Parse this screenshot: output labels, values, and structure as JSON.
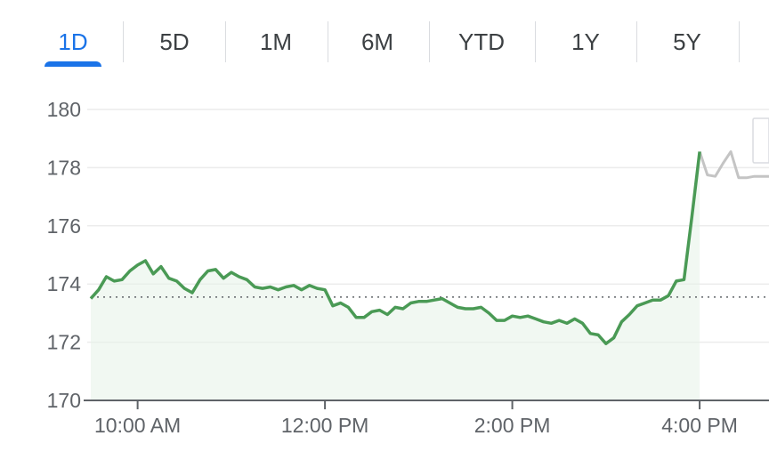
{
  "range_tabs": [
    {
      "label": "1D",
      "active": true
    },
    {
      "label": "5D",
      "active": false
    },
    {
      "label": "1M",
      "active": false
    },
    {
      "label": "6M",
      "active": false
    },
    {
      "label": "YTD",
      "active": false
    },
    {
      "label": "1Y",
      "active": false
    },
    {
      "label": "5Y",
      "active": false
    }
  ],
  "colors": {
    "accent": "#1a73e8",
    "line_up": "#4a9a55",
    "after_hours": "#c4c4c4",
    "fill": "#e8f3ea",
    "grid": "#ececec",
    "dotted": "#5f6368"
  },
  "chart_data": {
    "type": "line",
    "title": "",
    "xlabel": "",
    "ylabel": "",
    "ylim": [
      170,
      180
    ],
    "y_ticks": [
      170,
      172,
      174,
      176,
      178,
      180
    ],
    "x_ticks": [
      "10:00 AM",
      "12:00 PM",
      "2:00 PM",
      "4:00 PM"
    ],
    "x_tick_minutes": [
      600,
      720,
      840,
      960
    ],
    "x_range_minutes": [
      570,
      1005
    ],
    "previous_close": 173.55,
    "grid": true,
    "series": [
      {
        "kind": "regular",
        "x": [
          570,
          575,
          580,
          585,
          590,
          595,
          600,
          605,
          610,
          615,
          620,
          625,
          630,
          635,
          640,
          645,
          650,
          655,
          660,
          665,
          670,
          675,
          680,
          685,
          690,
          695,
          700,
          705,
          710,
          715,
          720,
          725,
          730,
          735,
          740,
          745,
          750,
          755,
          760,
          765,
          770,
          775,
          780,
          785,
          790,
          795,
          800,
          805,
          810,
          815,
          820,
          825,
          830,
          835,
          840,
          845,
          850,
          855,
          860,
          865,
          870,
          875,
          880,
          885,
          890,
          895,
          900,
          905,
          910,
          915,
          920,
          925,
          930,
          935,
          940,
          945,
          950,
          955,
          960
        ],
        "y": [
          173.5,
          173.8,
          174.25,
          174.1,
          174.15,
          174.45,
          174.65,
          174.8,
          174.35,
          174.6,
          174.2,
          174.1,
          173.85,
          173.7,
          174.15,
          174.45,
          174.5,
          174.2,
          174.4,
          174.25,
          174.15,
          173.9,
          173.85,
          173.9,
          173.8,
          173.9,
          173.95,
          173.8,
          173.95,
          173.85,
          173.8,
          173.25,
          173.35,
          173.2,
          172.85,
          172.85,
          173.05,
          173.1,
          172.95,
          173.2,
          173.15,
          173.35,
          173.4,
          173.4,
          173.45,
          173.5,
          173.35,
          173.2,
          173.15,
          173.15,
          173.2,
          173.0,
          172.75,
          172.75,
          172.9,
          172.85,
          172.9,
          172.8,
          172.7,
          172.65,
          172.75,
          172.65,
          172.8,
          172.65,
          172.3,
          172.25,
          171.95,
          172.15,
          172.7,
          172.95,
          173.25,
          173.35,
          173.45,
          173.45,
          173.6,
          174.1,
          174.15,
          176.3,
          178.55
        ]
      },
      {
        "kind": "after_hours",
        "x": [
          960,
          965,
          970,
          975,
          980,
          985,
          990,
          995,
          1000,
          1005
        ],
        "y": [
          178.55,
          177.75,
          177.7,
          178.15,
          178.55,
          177.65,
          177.65,
          177.7,
          177.7,
          177.7
        ]
      }
    ]
  }
}
